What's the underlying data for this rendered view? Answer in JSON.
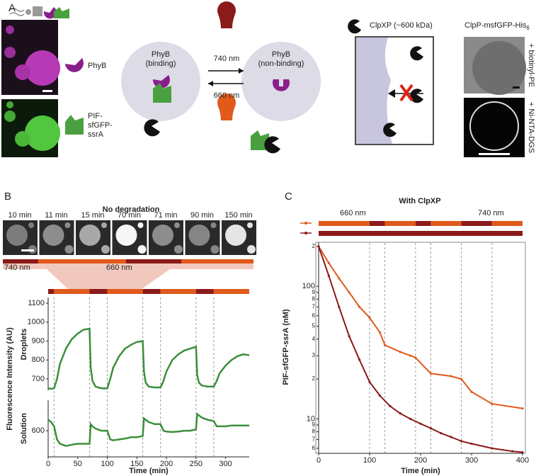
{
  "panel_labels": {
    "a": "A",
    "b": "B",
    "c": "C"
  },
  "panel_a": {
    "phyb": "PhyB",
    "pif": [
      "PIF-",
      "sfGFP-",
      "ssrA"
    ],
    "binding": [
      "PhyB",
      "(binding)"
    ],
    "nonbinding": [
      "PhyB",
      "(non-binding)"
    ],
    "far_red": "740 nm",
    "red": "660 nm",
    "clpxp": "ClpXP (~600 kDa)",
    "clpp": "ClpP-msfGFP-His",
    "clpp_sub": "6",
    "biotinyl": "+ biotinyl-PE",
    "ninta": "+ Ni-NTA-DGS"
  },
  "panel_b": {
    "title": "No degradation",
    "images": [
      "10 min",
      "11 min",
      "15 min",
      "70 min",
      "71 min",
      "90 min",
      "150 min"
    ],
    "far_red": "740 nm",
    "red": "660 nm",
    "y_label": "Fluorescence Intensity (AU)",
    "schedule": [
      {
        "start": 0,
        "end": 10,
        "color": "#8b1a1a"
      },
      {
        "start": 10,
        "end": 70,
        "color": "#e05a1c"
      },
      {
        "start": 70,
        "end": 100,
        "color": "#8b1a1a"
      },
      {
        "start": 100,
        "end": 160,
        "color": "#e05a1c"
      },
      {
        "start": 160,
        "end": 190,
        "color": "#8b1a1a"
      },
      {
        "start": 190,
        "end": 250,
        "color": "#e05a1c"
      },
      {
        "start": 250,
        "end": 280,
        "color": "#8b1a1a"
      },
      {
        "start": 280,
        "end": 340,
        "color": "#e05a1c"
      }
    ],
    "switches": [
      10,
      70,
      100,
      160,
      190,
      250,
      280
    ]
  },
  "panel_c": {
    "title": "With ClpXP",
    "red": "660 nm",
    "far_red": "740 nm",
    "schedules": [
      [
        {
          "start": 0,
          "end": 100,
          "color": "#e05a1c"
        },
        {
          "start": 100,
          "end": 130,
          "color": "#8b1a1a"
        },
        {
          "start": 130,
          "end": 190,
          "color": "#e05a1c"
        },
        {
          "start": 190,
          "end": 220,
          "color": "#8b1a1a"
        },
        {
          "start": 220,
          "end": 280,
          "color": "#e05a1c"
        },
        {
          "start": 280,
          "end": 340,
          "color": "#8b1a1a"
        },
        {
          "start": 340,
          "end": 400,
          "color": "#e05a1c"
        }
      ],
      [
        {
          "start": 0,
          "end": 400,
          "color": "#8b1a1a"
        }
      ]
    ],
    "switches": [
      100,
      130,
      190,
      220,
      280,
      340
    ]
  },
  "chart_data": [
    {
      "type": "line",
      "y_label": "Droplets",
      "color": "#3a8f3a",
      "xlim": [
        0,
        340
      ],
      "ylim": [
        640,
        1130
      ],
      "yticks": [
        700,
        800,
        900,
        1000,
        1100
      ],
      "x": [
        0,
        5,
        10,
        15,
        20,
        30,
        40,
        50,
        60,
        70,
        72,
        75,
        80,
        90,
        100,
        105,
        110,
        120,
        130,
        140,
        150,
        160,
        162,
        165,
        170,
        180,
        190,
        195,
        200,
        210,
        220,
        230,
        240,
        250,
        252,
        255,
        260,
        270,
        280,
        285,
        290,
        300,
        310,
        320,
        330,
        340
      ],
      "values": [
        650,
        648,
        650,
        700,
        780,
        860,
        910,
        940,
        960,
        965,
        760,
        690,
        660,
        650,
        650,
        700,
        760,
        820,
        860,
        880,
        895,
        900,
        740,
        680,
        660,
        655,
        655,
        690,
        740,
        800,
        830,
        850,
        860,
        870,
        720,
        680,
        665,
        660,
        660,
        690,
        730,
        770,
        800,
        820,
        830,
        825
      ]
    },
    {
      "type": "line",
      "y_label": "Solution",
      "x_label": "Time (min)",
      "color": "#3a8f3a",
      "xlim": [
        0,
        340
      ],
      "ylim": [
        540,
        670
      ],
      "yticks": [
        600
      ],
      "xticks": [
        0,
        50,
        100,
        150,
        200,
        250,
        300
      ],
      "x": [
        0,
        5,
        10,
        15,
        20,
        30,
        40,
        50,
        60,
        70,
        72,
        75,
        80,
        90,
        100,
        105,
        110,
        120,
        130,
        140,
        150,
        160,
        162,
        165,
        170,
        180,
        190,
        195,
        200,
        210,
        220,
        230,
        240,
        250,
        252,
        255,
        260,
        270,
        280,
        285,
        290,
        300,
        310,
        320,
        330,
        340
      ],
      "values": [
        625,
        620,
        610,
        580,
        570,
        565,
        568,
        570,
        570,
        570,
        615,
        610,
        605,
        600,
        600,
        580,
        578,
        580,
        582,
        585,
        585,
        588,
        628,
        625,
        620,
        615,
        615,
        600,
        598,
        597,
        598,
        600,
        600,
        603,
        638,
        635,
        630,
        625,
        622,
        610,
        610,
        610,
        612,
        612,
        612,
        612
      ]
    },
    {
      "type": "line",
      "log_y": true,
      "y_label": "PIF-sfGFP-ssrA (nM)",
      "x_label": "Time (min)",
      "xlim": [
        0,
        400
      ],
      "ylim": [
        5.5,
        215
      ],
      "xticks": [
        0,
        100,
        200,
        300,
        400
      ],
      "yticks": [
        6,
        7,
        8,
        9,
        10,
        {
          "value": 20,
          "label": "2"
        },
        {
          "value": 30,
          "label": "3"
        },
        {
          "value": 40,
          "label": "4"
        },
        {
          "value": 50,
          "label": "5"
        },
        {
          "value": 60,
          "label": "6"
        },
        {
          "value": 70,
          "label": "7"
        },
        {
          "value": 80,
          "label": "8"
        },
        {
          "value": 90,
          "label": "9"
        },
        100,
        {
          "value": 200,
          "label": "2"
        }
      ],
      "series": [
        {
          "color": "#e05a1c",
          "x": [
            0,
            20,
            40,
            60,
            80,
            100,
            120,
            130,
            160,
            180,
            190,
            220,
            260,
            280,
            300,
            340,
            400
          ],
          "values": [
            200,
            150,
            115,
            90,
            70,
            58,
            45,
            36,
            32,
            30,
            29,
            22,
            21,
            20,
            16,
            13,
            12
          ]
        },
        {
          "color": "#8b1a1a",
          "x": [
            0,
            20,
            40,
            60,
            80,
            100,
            120,
            140,
            160,
            180,
            200,
            220,
            240,
            260,
            280,
            300,
            340,
            380,
            400
          ],
          "values": [
            200,
            120,
            70,
            42,
            28,
            19,
            15,
            12.5,
            11,
            10,
            9.2,
            8.5,
            7.8,
            7.3,
            6.8,
            6.5,
            6.0,
            5.7,
            5.6
          ]
        }
      ]
    }
  ]
}
